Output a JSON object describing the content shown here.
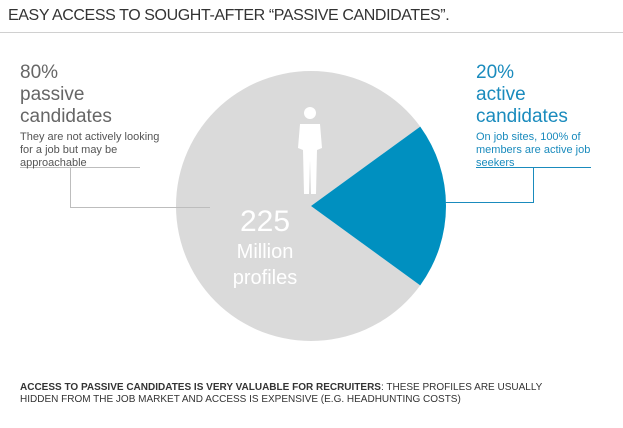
{
  "title": "EASY ACCESS TO SOUGHT-AFTER “PASSIVE CANDIDATES”.",
  "passive": {
    "percent": "80%",
    "label_line1": "passive",
    "label_line2": "candidates",
    "description": "They are not actively looking for a job but may be approachable"
  },
  "active": {
    "percent": "20%",
    "label_line1": "active",
    "label_line2": "candidates",
    "description": "On job sites, 100% of members are active job seekers"
  },
  "center": {
    "number": "225",
    "line1": "Million",
    "line2": "profiles"
  },
  "footer": {
    "bold": "ACCESS TO PASSIVE CANDIDATES IS VERY VALUABLE FOR RECRUITERS",
    "rest": ": THESE PROFILES ARE USUALLY HIDDEN FROM THE JOB MARKET AND ACCESS IS EXPENSIVE (E.G. HEADHUNTING COSTS)"
  },
  "icons": {
    "person": "person-silhouette-icon"
  },
  "chart_data": {
    "type": "pie",
    "slices": [
      {
        "label": "passive candidates",
        "value": 80,
        "color": "#dadada"
      },
      {
        "label": "active candidates",
        "value": 20,
        "color": "#0090c0"
      }
    ]
  }
}
